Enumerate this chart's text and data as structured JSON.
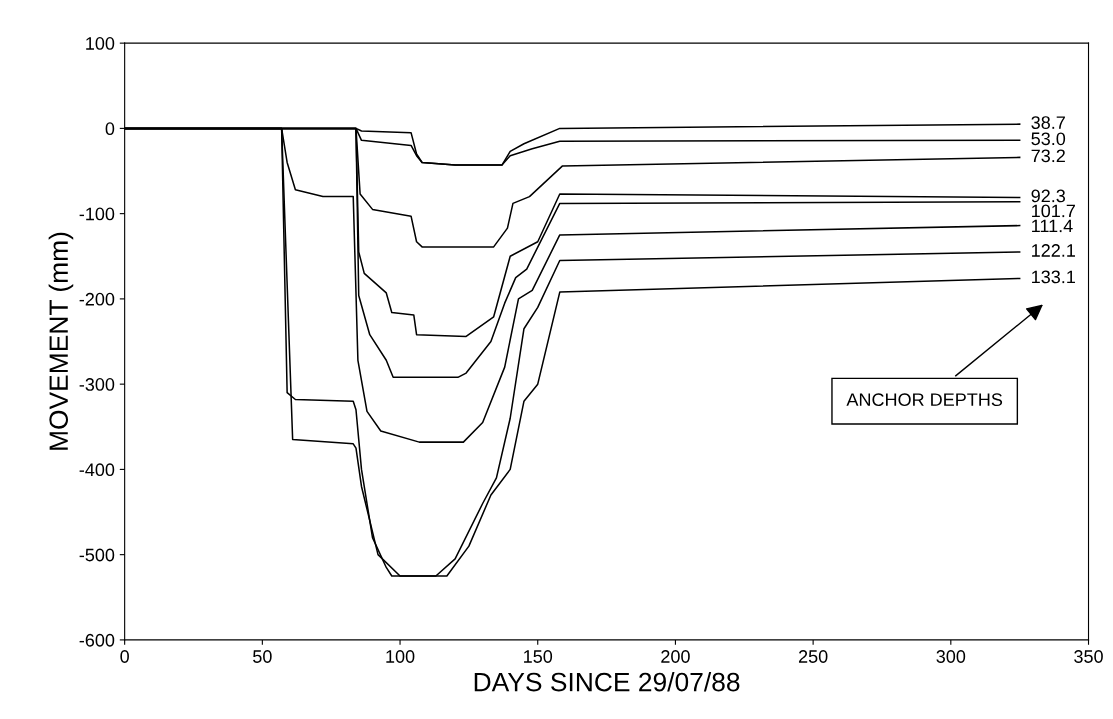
{
  "chart_data": {
    "type": "line",
    "xlabel": "DAYS SINCE 29/07/88",
    "ylabel": "MOVEMENT (mm)",
    "xlim": [
      0,
      350
    ],
    "ylim": [
      -600,
      100
    ],
    "xticks": [
      0,
      50,
      100,
      150,
      200,
      250,
      300,
      350
    ],
    "yticks": [
      -600,
      -500,
      -400,
      -300,
      -200,
      -100,
      0,
      100
    ],
    "grid": false,
    "marker": "none",
    "line_style": "solid",
    "annotations": [
      "ANCHOR DEPTHS"
    ],
    "series": [
      {
        "name": "38.7",
        "color": "#000000",
        "x": [
          0,
          84,
          86,
          104,
          106,
          108,
          120,
          137,
          140,
          145,
          158,
          325
        ],
        "values": [
          0,
          0,
          -3,
          -5,
          -30,
          -40,
          -43,
          -43,
          -27,
          -18,
          0,
          5
        ]
      },
      {
        "name": "53.0",
        "color": "#000000",
        "x": [
          0,
          84,
          86,
          104,
          106,
          108,
          120,
          137,
          140,
          148,
          158,
          325
        ],
        "values": [
          0,
          0,
          -14,
          -20,
          -32,
          -40,
          -43,
          -43,
          -32,
          -24,
          -15,
          -14
        ]
      },
      {
        "name": "73.2",
        "color": "#000000",
        "x": [
          0,
          84,
          85.5,
          90,
          104,
          106,
          108,
          134,
          139,
          141,
          147,
          159,
          325
        ],
        "values": [
          0,
          0,
          -77,
          -95,
          -103,
          -133,
          -139,
          -139,
          -117,
          -88,
          -80,
          -44,
          -34
        ]
      },
      {
        "name": "92.3",
        "color": "#000000",
        "x": [
          0,
          84,
          85,
          87,
          95,
          97,
          105,
          106,
          124,
          134,
          140,
          150,
          158,
          325
        ],
        "values": [
          0,
          0,
          -145,
          -170,
          -193,
          -216,
          -219,
          -242,
          -244,
          -221,
          -150,
          -133,
          -77,
          -81
        ]
      },
      {
        "name": "101.7",
        "color": "#000000",
        "x": [
          0,
          84,
          85,
          89,
          95,
          97.5,
          121,
          124,
          133,
          138,
          142,
          146,
          158,
          325
        ],
        "values": [
          0,
          0,
          -196,
          -242,
          -272,
          -292,
          -292,
          -287,
          -250,
          -205,
          -175,
          -165,
          -88,
          -86
        ]
      },
      {
        "name": "111.4",
        "color": "#000000",
        "x": [
          0,
          57,
          59,
          62,
          72,
          83,
          84.7,
          88,
          93,
          107,
          123,
          130,
          138,
          143,
          148,
          158,
          325
        ],
        "values": [
          0,
          0,
          -40,
          -72,
          -80,
          -80,
          -272,
          -332,
          -355,
          -368,
          -368,
          -345,
          -280,
          -200,
          -190,
          -125,
          -114
        ]
      },
      {
        "name": "122.1",
        "color": "#000000",
        "x": [
          0,
          57,
          59,
          62,
          83,
          84,
          86,
          90,
          95,
          97,
          113,
          120,
          130,
          135,
          140,
          145,
          150,
          158,
          325
        ],
        "values": [
          0,
          0,
          -310,
          -318,
          -320,
          -330,
          -400,
          -480,
          -515,
          -525,
          -525,
          -505,
          -440,
          -410,
          -340,
          -235,
          -210,
          -155,
          -145
        ]
      },
      {
        "name": "133.1",
        "color": "#000000",
        "x": [
          0,
          57,
          61,
          83,
          84,
          86,
          92,
          100,
          117,
          125,
          133,
          140,
          145,
          150,
          158,
          325
        ],
        "values": [
          0,
          0,
          -365,
          -370,
          -375,
          -420,
          -500,
          -525,
          -525,
          -490,
          -430,
          -400,
          -320,
          -300,
          -192,
          -176
        ]
      }
    ]
  }
}
